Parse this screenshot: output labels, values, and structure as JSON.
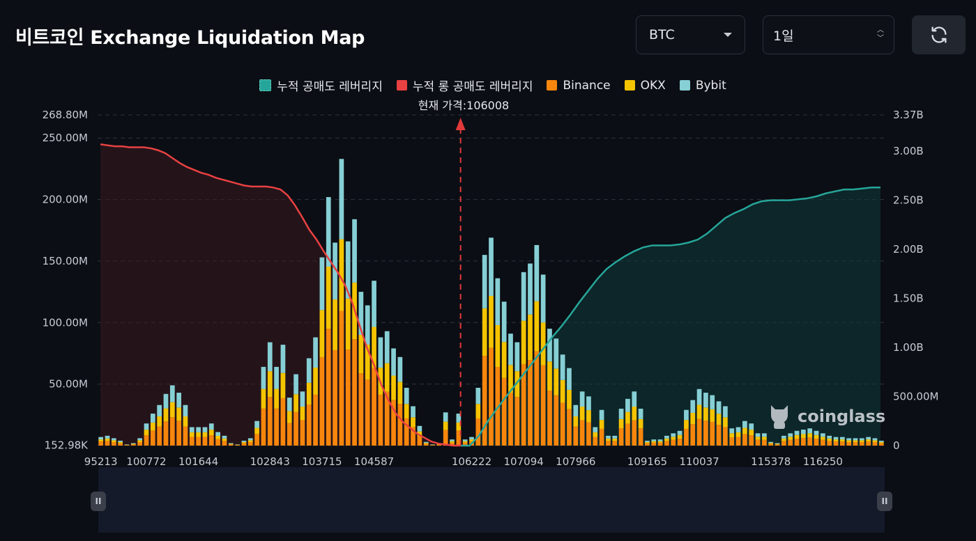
{
  "header": {
    "title": "비트코인 Exchange Liquidation Map",
    "coin_select": "BTC",
    "timeframe_select": "1일"
  },
  "colors": {
    "background": "#0b0e14",
    "short_cum": "#26a69a",
    "long_cum": "#e84142",
    "binance": "#f7860d",
    "okx": "#f5c400",
    "bybit": "#86cfd4",
    "current_price_line": "#e03a3a"
  },
  "icons": {
    "refresh": "refresh-icon",
    "dropdown": "chevron-down-icon",
    "spinner": "up-down-arrows-icon"
  },
  "watermark": "coinglass",
  "chart_data": {
    "type": "bar",
    "legend": [
      "누적 공매도 레버리지",
      "누적 롱 공매도 레버리지",
      "Binance",
      "OKX",
      "Bybit"
    ],
    "current_price_label": "현재 가격:106008",
    "current_price": 106008,
    "left_axis_ticks": [
      "268.80M",
      "250.00M",
      "200.00M",
      "150.00M",
      "100.00M",
      "50.00M",
      "152.98K"
    ],
    "left_axis_values": [
      268.8,
      250,
      200,
      150,
      100,
      50,
      0.153
    ],
    "right_axis_ticks": [
      "3.37B",
      "3.00B",
      "2.50B",
      "2.00B",
      "1.50B",
      "1.00B",
      "500.00M",
      "0"
    ],
    "right_axis_values": [
      3.37,
      3.0,
      2.5,
      2.0,
      1.5,
      1.0,
      0.5,
      0
    ],
    "x_tick_labels": [
      "95213",
      "100772",
      "101644",
      "102843",
      "103715",
      "104587",
      "106222",
      "107094",
      "107966",
      "109165",
      "110037",
      "115378",
      "116250"
    ],
    "x_tick_index": [
      0,
      7,
      15,
      26,
      34,
      42,
      57,
      65,
      73,
      84,
      92,
      103,
      111
    ],
    "ylim_left_millions": [
      0,
      268.8
    ],
    "ylim_right_billions": [
      0,
      3.37
    ],
    "totals_millions": [
      7,
      8,
      6,
      4,
      1,
      2,
      6,
      18,
      26,
      33,
      42,
      49,
      43,
      33,
      15,
      15,
      15,
      18,
      11,
      8,
      2,
      1,
      4,
      6,
      20,
      64,
      84,
      64,
      82,
      39,
      58,
      44,
      71,
      88,
      153,
      202,
      165,
      233,
      166,
      184,
      125,
      114,
      134,
      88,
      93,
      79,
      72,
      47,
      32,
      16,
      3,
      1,
      2,
      27,
      5,
      26,
      5,
      7,
      47,
      155,
      169,
      136,
      117,
      91,
      84,
      141,
      148,
      163,
      139,
      95,
      87,
      74,
      63,
      33,
      44,
      40,
      15,
      29,
      8,
      8,
      30,
      38,
      44,
      30,
      4,
      5,
      5,
      8,
      10,
      12,
      29,
      37,
      46,
      43,
      41,
      36,
      32,
      14,
      15,
      20,
      18,
      10,
      10,
      3,
      2,
      8,
      10,
      12,
      13,
      14,
      12,
      10,
      8,
      7,
      7,
      6,
      6,
      6,
      7,
      6,
      4
    ],
    "cumulative": {
      "long_billions": [
        3.07,
        3.06,
        3.05,
        3.05,
        3.04,
        3.04,
        3.04,
        3.03,
        3.01,
        2.98,
        2.93,
        2.88,
        2.84,
        2.81,
        2.78,
        2.76,
        2.73,
        2.71,
        2.69,
        2.67,
        2.65,
        2.64,
        2.64,
        2.64,
        2.63,
        2.61,
        2.55,
        2.45,
        2.33,
        2.2,
        2.1,
        1.98,
        1.87,
        1.76,
        1.63,
        1.45,
        1.22,
        1.0,
        0.82,
        0.62,
        0.46,
        0.33,
        0.24,
        0.18,
        0.12,
        0.08,
        0.04,
        0.02,
        0.01,
        0.0,
        0.0
      ],
      "short_billions": [
        0.0,
        0.0,
        0.1,
        0.25,
        0.38,
        0.5,
        0.62,
        0.74,
        0.86,
        0.98,
        1.1,
        1.21,
        1.33,
        1.46,
        1.58,
        1.7,
        1.8,
        1.87,
        1.93,
        1.98,
        2.02,
        2.04,
        2.04,
        2.04,
        2.05,
        2.07,
        2.1,
        2.16,
        2.24,
        2.32,
        2.37,
        2.41,
        2.46,
        2.49,
        2.5,
        2.5,
        2.5,
        2.51,
        2.52,
        2.54,
        2.57,
        2.59,
        2.61,
        2.61,
        2.62,
        2.63,
        2.63
      ]
    }
  }
}
